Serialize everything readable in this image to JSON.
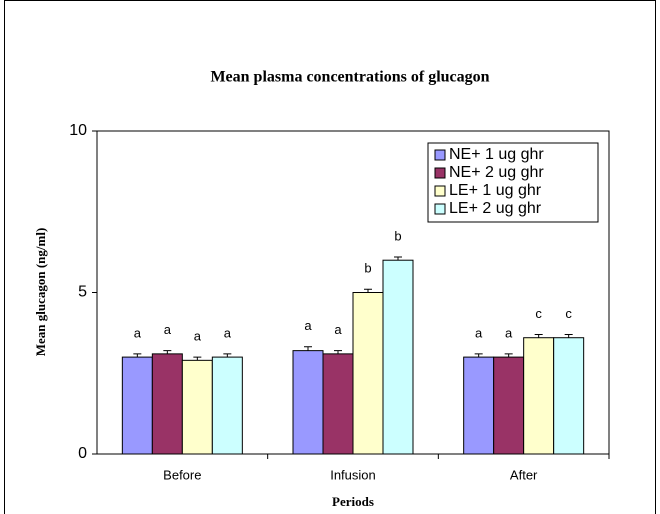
{
  "chart_data": {
    "type": "bar",
    "title": "Mean plasma concentrations of glucagon",
    "xlabel": "Periods",
    "ylabel": "Mean glucagon (ng/ml)",
    "categories": [
      "Before",
      "Infusion",
      "After"
    ],
    "series": [
      {
        "name": "NE+ 1 ug ghr",
        "color": "#9999ff",
        "values": [
          3.0,
          3.2,
          3.0
        ],
        "errors": [
          0.1,
          0.12,
          0.1
        ],
        "labels": [
          "a",
          "a",
          "a"
        ]
      },
      {
        "name": "NE+ 2 ug ghr",
        "color": "#993366",
        "values": [
          3.1,
          3.1,
          3.0
        ],
        "errors": [
          0.1,
          0.1,
          0.1
        ],
        "labels": [
          "a",
          "a",
          "a"
        ]
      },
      {
        "name": "LE+ 1 ug ghr",
        "color": "#ffffcc",
        "values": [
          2.9,
          5.0,
          3.6
        ],
        "errors": [
          0.1,
          0.1,
          0.1
        ],
        "labels": [
          "a",
          "b",
          "c"
        ]
      },
      {
        "name": "LE+ 2 ug ghr",
        "color": "#ccffff",
        "values": [
          3.0,
          6.0,
          3.6
        ],
        "errors": [
          0.1,
          0.1,
          0.1
        ],
        "labels": [
          "a",
          "b",
          "c"
        ]
      }
    ],
    "ylim": [
      0,
      10
    ],
    "yticks": [
      0,
      5,
      10
    ],
    "legend": "upper right"
  }
}
